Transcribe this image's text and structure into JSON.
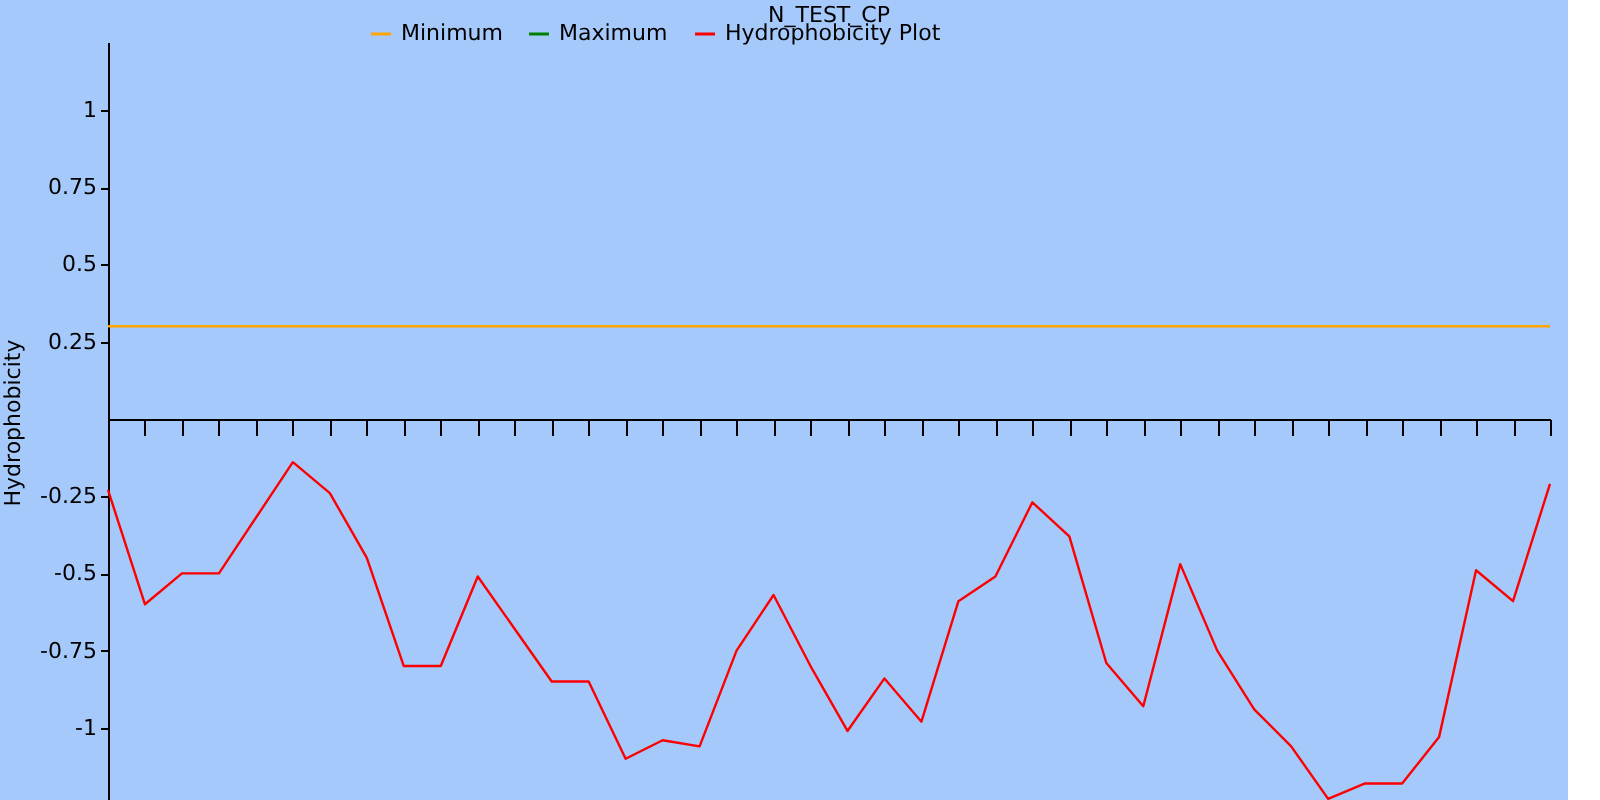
{
  "chart_data": {
    "type": "line",
    "title": "N_TEST_CP",
    "ylabel": "Hydrophobicity",
    "categories": [
      null,
      null,
      null,
      null,
      null,
      null,
      null,
      null,
      null,
      null,
      null,
      null,
      null,
      null,
      null,
      null,
      null,
      null,
      null,
      null,
      null,
      null,
      null,
      null,
      null,
      null,
      null,
      null,
      null,
      null,
      null,
      null,
      null,
      null,
      null,
      null,
      null,
      null,
      null,
      null
    ],
    "series": [
      {
        "name": "Minimum",
        "color": "#ffa500",
        "values": [
          0.3,
          0.3,
          0.3,
          0.3,
          0.3,
          0.3,
          0.3,
          0.3,
          0.3,
          0.3,
          0.3,
          0.3,
          0.3,
          0.3,
          0.3,
          0.3,
          0.3,
          0.3,
          0.3,
          0.3,
          0.3,
          0.3,
          0.3,
          0.3,
          0.3,
          0.3,
          0.3,
          0.3,
          0.3,
          0.3,
          0.3,
          0.3,
          0.3,
          0.3,
          0.3,
          0.3,
          0.3,
          0.3,
          0.3,
          0.3
        ]
      },
      {
        "name": "Maximum",
        "color": "#008000",
        "values": [
          null,
          null,
          null,
          null,
          null,
          null,
          null,
          null,
          null,
          null,
          null,
          null,
          null,
          null,
          null,
          null,
          null,
          null,
          null,
          null,
          null,
          null,
          null,
          null,
          null,
          null,
          null,
          null,
          null,
          null,
          null,
          null,
          null,
          null,
          null,
          null,
          null,
          null,
          null,
          null
        ]
      },
      {
        "name": "Hydrophobicity Plot",
        "color": "#ff0000",
        "values": [
          -0.23,
          -0.6,
          -0.5,
          -0.5,
          -0.32,
          -0.14,
          -0.24,
          -0.45,
          -0.8,
          -0.8,
          -0.51,
          -0.68,
          -0.85,
          -0.85,
          -1.1,
          -1.04,
          -1.06,
          -0.75,
          -0.57,
          -0.8,
          -1.01,
          -0.84,
          -0.98,
          -0.59,
          -0.51,
          -0.27,
          -0.38,
          -0.79,
          -0.93,
          -0.47,
          -0.75,
          -0.94,
          -1.06,
          -1.23,
          -1.18,
          -1.18,
          -1.03,
          -0.49,
          -0.59,
          -0.21
        ]
      }
    ],
    "ylim": [
      -1.24,
      1.22
    ],
    "yticks": [
      -1,
      -0.75,
      -0.5,
      -0.25,
      0.25,
      0.5,
      0.75,
      1
    ],
    "tick_labels": "y",
    "grid": false,
    "legend": "top",
    "marker": "none",
    "line_style": "solid"
  }
}
